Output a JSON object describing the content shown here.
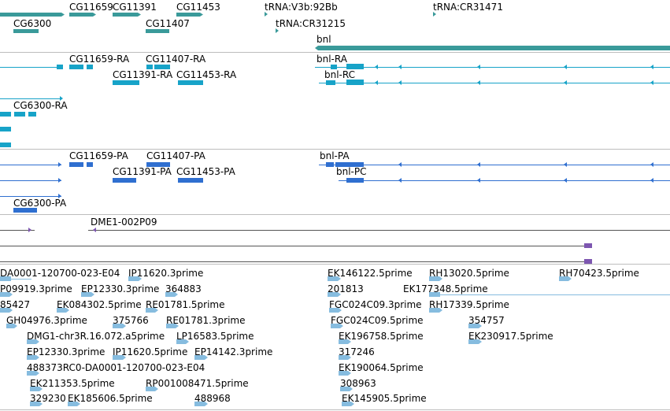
{
  "colors": {
    "gene": "#3a9a9a",
    "transcript": "#17a3c8",
    "cds": "#2f6fd0",
    "clone": "#7d56b0",
    "est": "#86bcdf",
    "divider": "#bdbdbd",
    "background": "#ffffff"
  },
  "tracks": {
    "genes": {
      "labels": [
        "CG11659",
        "CG11391",
        "CG11453",
        "tRNA:V3b:92Bb",
        "tRNA:CR31471",
        "CG6300",
        "CG11407",
        "tRNA:CR31215",
        "bnl"
      ]
    },
    "transcripts": {
      "labels": [
        "CG11659-RA",
        "CG11407-RA",
        "bnl-RA",
        "CG11391-RA",
        "CG11453-RA",
        "bnl-RC",
        "CG6300-RA"
      ]
    },
    "proteins": {
      "labels": [
        "CG11659-PA",
        "CG11407-PA",
        "bnl-PA",
        "CG11391-PA",
        "CG11453-PA",
        "bnl-PC",
        "CG6300-PA"
      ]
    },
    "clones": {
      "labels": [
        "DME1-002P09"
      ]
    },
    "ests": {
      "labels": [
        "DA0001-120700-023-E04",
        "IP11620.3prime",
        "EK146122.5prime",
        "RH13020.5prime",
        "RH70423.5prime",
        "P09919.3prime",
        "EP12330.3prime",
        "364883",
        "201813",
        "EK177348.5prime",
        "85427",
        "EK084302.5prime",
        "RE01781.5prime",
        "FGC024C09.3prime",
        "RH17339.5prime",
        "GH04976.3prime",
        "375766",
        "RE01781.3prime",
        "FGC024C09.5prime",
        "354757",
        "DMG1-chr3R.16.072.a5prime",
        "LP16583.5prime",
        "EK196758.5prime",
        "EK230917.5prime",
        "EP12330.3prime",
        "IP11620.5prime",
        "EP14142.3prime",
        "317246",
        "488373RC0-DA0001-120700-023-E04",
        "EK190064.5prime",
        "EK211353.5prime",
        "RP001008471.5prime",
        "308963",
        "329230",
        "EK185606.5prime",
        "488968",
        "EK145905.5prime"
      ]
    }
  }
}
